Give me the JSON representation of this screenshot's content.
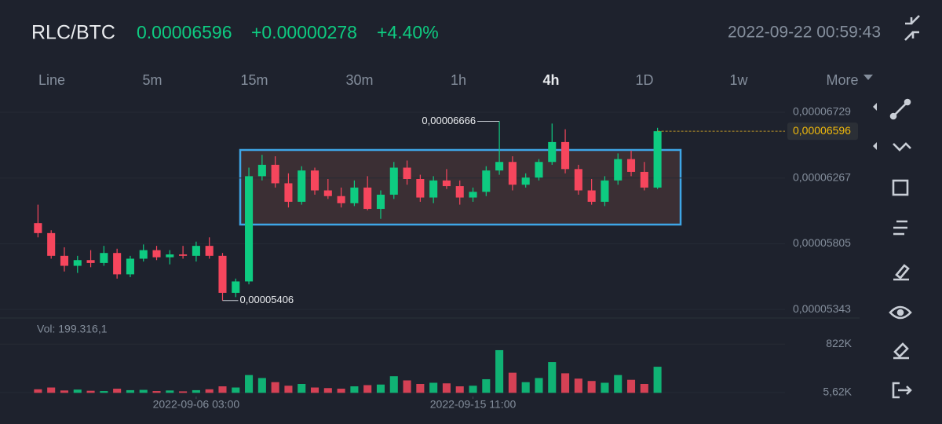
{
  "header": {
    "pair": "RLC/BTC",
    "price": "0.00006596",
    "change": "+0.00000278",
    "change_pct": "+4.40%",
    "time": "2022-09-22 00:59:43"
  },
  "tabs": [
    "Line",
    "5m",
    "15m",
    "30m",
    "1h",
    "4h",
    "1D",
    "1w",
    "More"
  ],
  "active_tab": "4h",
  "chart_data": {
    "type": "candlestick",
    "open": [
      5.95e-05,
      5.88e-05,
      5.72e-05,
      5.65e-05,
      5.69e-05,
      5.67e-05,
      5.74e-05,
      5.59e-05,
      5.7e-05,
      5.76e-05,
      5.71e-05,
      5.73e-05,
      5.72e-05,
      5.79e-05,
      5.72e-05,
      5.46e-05,
      5.54e-05,
      6.28e-05,
      6.36e-05,
      6.23e-05,
      6.1e-05,
      6.32e-05,
      6.18e-05,
      6.14e-05,
      6.09e-05,
      6.2e-05,
      6.05e-05,
      6.15e-05,
      6.34e-05,
      6.26e-05,
      6.13e-05,
      6.25e-05,
      6.21e-05,
      6.13e-05,
      6.17e-05,
      6.32e-05,
      6.38e-05,
      6.22e-05,
      6.27e-05,
      6.38e-05,
      6.52e-05,
      6.33e-05,
      6.18e-05,
      6.1e-05,
      6.25e-05,
      6.4e-05,
      6.31e-05,
      6.2e-05
    ],
    "high": [
      6.08e-05,
      5.9e-05,
      5.78e-05,
      5.72e-05,
      5.76e-05,
      5.79e-05,
      5.77e-05,
      5.72e-05,
      5.8e-05,
      5.79e-05,
      5.76e-05,
      5.79e-05,
      5.82e-05,
      5.85e-05,
      5.74e-05,
      5.56e-05,
      6.34e-05,
      6.43e-05,
      6.42e-05,
      6.3e-05,
      6.35e-05,
      6.34e-05,
      6.26e-05,
      6.2e-05,
      6.25e-05,
      6.28e-05,
      6.18e-05,
      6.38e-05,
      6.39e-05,
      6.29e-05,
      6.28e-05,
      6.33e-05,
      6.25e-05,
      6.2e-05,
      6.35e-05,
      6.666e-05,
      6.42e-05,
      6.3e-05,
      6.4e-05,
      6.65e-05,
      6.61e-05,
      6.36e-05,
      6.26e-05,
      6.28e-05,
      6.44e-05,
      6.46e-05,
      6.38e-05,
      6.62e-05
    ],
    "low": [
      5.85e-05,
      5.7e-05,
      5.61e-05,
      5.6e-05,
      5.64e-05,
      5.65e-05,
      5.56e-05,
      5.57e-05,
      5.68e-05,
      5.69e-05,
      5.66e-05,
      5.7e-05,
      5.68e-05,
      5.7e-05,
      5.406e-05,
      5.43e-05,
      5.52e-05,
      6.25e-05,
      6.2e-05,
      6.06e-05,
      6.08e-05,
      6.15e-05,
      6.12e-05,
      6.06e-05,
      6.07e-05,
      6.04e-05,
      5.98e-05,
      6.12e-05,
      6.22e-05,
      6.1e-05,
      6.09e-05,
      6.19e-05,
      6.08e-05,
      6.1e-05,
      6.14e-05,
      6.29e-05,
      6.18e-05,
      6.2e-05,
      6.25e-05,
      6.36e-05,
      6.3e-05,
      6.15e-05,
      6.08e-05,
      6.07e-05,
      6.22e-05,
      6.28e-05,
      6.18e-05,
      6.19e-05
    ],
    "close": [
      5.88e-05,
      5.72e-05,
      5.65e-05,
      5.69e-05,
      5.67e-05,
      5.74e-05,
      5.59e-05,
      5.7e-05,
      5.76e-05,
      5.71e-05,
      5.73e-05,
      5.72e-05,
      5.79e-05,
      5.72e-05,
      5.46e-05,
      5.54e-05,
      6.28e-05,
      6.36e-05,
      6.23e-05,
      6.1e-05,
      6.32e-05,
      6.18e-05,
      6.14e-05,
      6.09e-05,
      6.2e-05,
      6.05e-05,
      6.15e-05,
      6.34e-05,
      6.26e-05,
      6.13e-05,
      6.25e-05,
      6.21e-05,
      6.13e-05,
      6.17e-05,
      6.32e-05,
      6.38e-05,
      6.22e-05,
      6.27e-05,
      6.38e-05,
      6.52e-05,
      6.33e-05,
      6.18e-05,
      6.1e-05,
      6.25e-05,
      6.4e-05,
      6.31e-05,
      6.2e-05,
      6.596e-05
    ],
    "volume": [
      60000,
      90000,
      40000,
      55000,
      35000,
      30000,
      70000,
      45000,
      50000,
      30000,
      40000,
      25000,
      45000,
      60000,
      110000,
      90000,
      300000,
      250000,
      180000,
      120000,
      150000,
      90000,
      80000,
      70000,
      110000,
      130000,
      140000,
      280000,
      210000,
      150000,
      170000,
      160000,
      110000,
      120000,
      230000,
      720000,
      340000,
      180000,
      250000,
      520000,
      330000,
      240000,
      200000,
      170000,
      300000,
      220000,
      150000,
      440000
    ],
    "ylim": [
      5.283e-05,
      6.801e-05
    ],
    "yticks": [
      {
        "value": 6.729e-05,
        "label": "0,00006729"
      },
      {
        "value": 6.267e-05,
        "label": "0,00006267"
      },
      {
        "value": 5.805e-05,
        "label": "0,00005805"
      },
      {
        "value": 5.343e-05,
        "label": "0,00005343"
      }
    ],
    "xlim": [
      0,
      48
    ],
    "xticks": [
      {
        "value": 12,
        "label": "2022-09-06 03:00"
      },
      {
        "value": 33,
        "label": "2022-09-15 11:00"
      }
    ],
    "volume_label": "Vol: 199.316,1",
    "vlim": [
      -62000,
      1130000
    ],
    "vticks": [
      {
        "value": 822000,
        "label": "822K"
      },
      {
        "value": 5620,
        "label": "5,62K"
      }
    ],
    "high_marker": {
      "value": 6.666e-05,
      "label": "0,00006666"
    },
    "low_marker": {
      "value": 5.406e-05,
      "label": "0,00005406"
    },
    "last_price": {
      "value": 6.596e-05,
      "label": "0,00006596"
    },
    "colors": {
      "up": "#0ecb81",
      "down": "#f6465d"
    }
  }
}
